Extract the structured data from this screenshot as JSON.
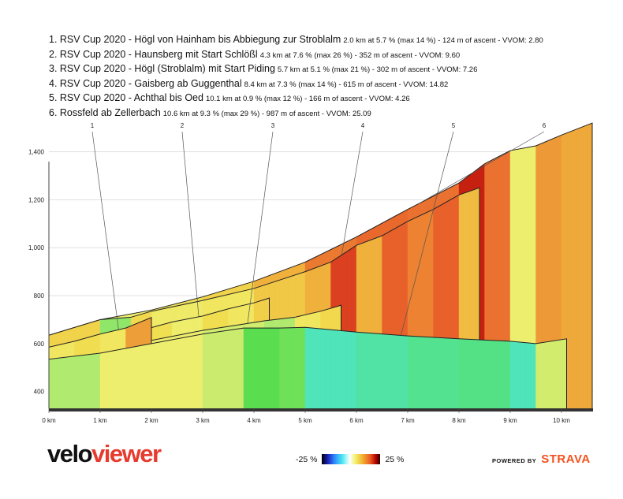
{
  "legend": [
    {
      "title": "1. RSV Cup 2020 - Högl von Hainham bis Abbiegung zur Stroblalm",
      "stats": "2.0 km at 5.7 % (max 14 %) - 124 m of ascent - VVOM: 2.80"
    },
    {
      "title": "2. RSV Cup 2020 - Haunsberg mit Start Schlößl",
      "stats": "4.3 km at 7.6 % (max 26 %) - 352 m of ascent - VVOM: 9.60"
    },
    {
      "title": "3. RSV Cup 2020 - Högl (Stroblalm) mit Start Piding",
      "stats": "5.7 km at 5.1 % (max 21 %) - 302 m of ascent - VVOM: 7.26"
    },
    {
      "title": "4. RSV Cup 2020 - Gaisberg ab Guggenthal",
      "stats": "8.4 km at 7.3 % (max 14 %) - 615 m of ascent - VVOM: 14.82"
    },
    {
      "title": "5. RSV Cup 2020 - Achthal bis Oed",
      "stats": "10.1 km at 0.9 % (max 12 %) - 166 m of ascent - VVOM: 4.26"
    },
    {
      "title": "6. Rossfeld ab Zellerbach",
      "stats": "10.6 km at 9.3 % (max 29 %) - 987 m of ascent - VVOM: 25.09"
    }
  ],
  "chart_data": {
    "type": "area",
    "xlabel": "",
    "ylabel": "",
    "xlim": [
      0,
      10.6
    ],
    "ylim": [
      330,
      1540
    ],
    "x_ticks": [
      0,
      1,
      2,
      3,
      4,
      5,
      6,
      7,
      8,
      9,
      10
    ],
    "x_tick_labels": [
      "0 km",
      "1 km",
      "2 km",
      "3 km",
      "4 km",
      "5 km",
      "6 km",
      "7 km",
      "8 km",
      "9 km",
      "10 km"
    ],
    "y_ticks": [
      400,
      600,
      800,
      1000,
      1200,
      1400
    ],
    "y_tick_labels": [
      "400",
      "600",
      "800",
      "1,000",
      "1,200",
      "1,400"
    ],
    "series": [
      {
        "name": "1",
        "length_km": 2.0,
        "avg_grade": 5.7,
        "profile": [
          [
            0,
            585
          ],
          [
            0.5,
            610
          ],
          [
            1.0,
            640
          ],
          [
            1.5,
            665
          ],
          [
            2.0,
            709
          ]
        ]
      },
      {
        "name": "2",
        "length_km": 4.3,
        "avg_grade": 7.6,
        "profile": [
          [
            0,
            555
          ],
          [
            0.6,
            575
          ],
          [
            1.2,
            610
          ],
          [
            1.8,
            655
          ],
          [
            2.4,
            690
          ],
          [
            3.0,
            715
          ],
          [
            3.5,
            745
          ],
          [
            4.0,
            770
          ],
          [
            4.3,
            790
          ]
        ]
      },
      {
        "name": "3",
        "length_km": 5.7,
        "avg_grade": 5.1,
        "profile": [
          [
            0,
            540
          ],
          [
            0.6,
            550
          ],
          [
            1.2,
            575
          ],
          [
            1.8,
            605
          ],
          [
            2.4,
            630
          ],
          [
            3.0,
            655
          ],
          [
            3.6,
            675
          ],
          [
            4.2,
            695
          ],
          [
            4.8,
            710
          ],
          [
            5.3,
            735
          ],
          [
            5.7,
            760
          ]
        ]
      },
      {
        "name": "4",
        "length_km": 8.4,
        "avg_grade": 7.3,
        "profile": [
          [
            0,
            635
          ],
          [
            1.0,
            700
          ],
          [
            1.6,
            710
          ],
          [
            2.0,
            735
          ],
          [
            3.0,
            780
          ],
          [
            4.0,
            830
          ],
          [
            5.0,
            900
          ],
          [
            5.5,
            940
          ],
          [
            6.0,
            1010
          ],
          [
            6.5,
            1050
          ],
          [
            7.0,
            1110
          ],
          [
            7.5,
            1160
          ],
          [
            8.0,
            1220
          ],
          [
            8.4,
            1250
          ]
        ]
      },
      {
        "name": "5",
        "length_km": 10.1,
        "avg_grade": 0.9,
        "profile": [
          [
            0,
            535
          ],
          [
            1.0,
            560
          ],
          [
            2.0,
            600
          ],
          [
            3.0,
            640
          ],
          [
            3.8,
            665
          ],
          [
            4.5,
            665
          ],
          [
            5.0,
            668
          ],
          [
            5.5,
            658
          ],
          [
            6.0,
            648
          ],
          [
            7.0,
            632
          ],
          [
            8.0,
            620
          ],
          [
            9.0,
            610
          ],
          [
            9.5,
            600
          ],
          [
            10.1,
            620
          ]
        ]
      },
      {
        "name": "6",
        "length_km": 10.6,
        "avg_grade": 9.3,
        "profile": [
          [
            0,
            635
          ],
          [
            1.0,
            700
          ],
          [
            2.0,
            740
          ],
          [
            3.0,
            795
          ],
          [
            4.0,
            860
          ],
          [
            5.0,
            940
          ],
          [
            6.0,
            1045
          ],
          [
            7.0,
            1160
          ],
          [
            8.0,
            1270
          ],
          [
            8.5,
            1350
          ],
          [
            9.0,
            1405
          ],
          [
            9.5,
            1425
          ],
          [
            10.0,
            1470
          ],
          [
            10.6,
            1520
          ]
        ]
      }
    ]
  },
  "scale": {
    "min_label": "-25 %",
    "max_label": "25 %"
  },
  "brand": {
    "velo": "velo",
    "viewer": "viewer"
  },
  "powered": {
    "prefix": "POWERED BY",
    "name": "STRAVA"
  },
  "colors": {
    "outline": "#222222",
    "grid": "#cccccc",
    "axis": "#444444",
    "axis_bar": "#333333"
  }
}
